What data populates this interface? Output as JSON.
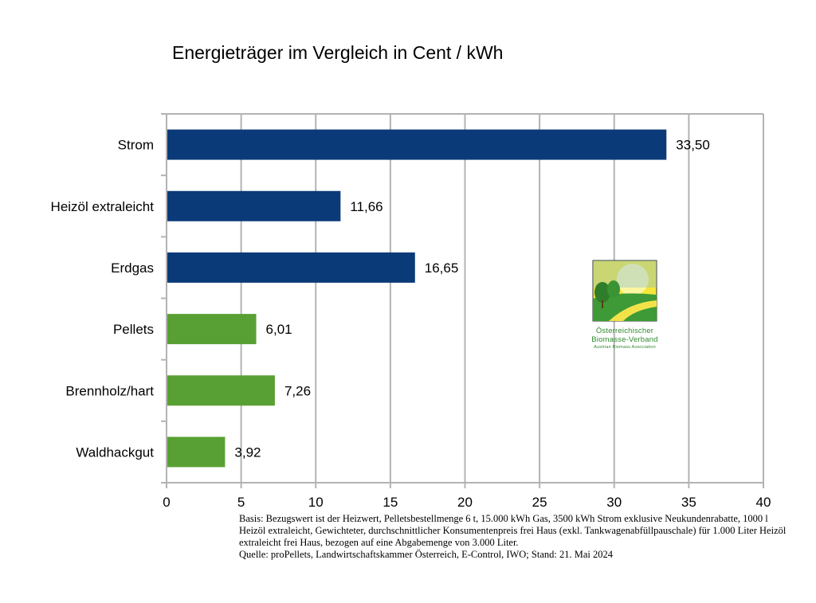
{
  "chart_data": {
    "type": "bar",
    "orientation": "horizontal",
    "title": "Energieträger im Vergleich in Cent / kWh",
    "categories": [
      "Strom",
      "Heizöl extraleicht",
      "Erdgas",
      "Pellets",
      "Brennholz/hart",
      "Waldhackgut"
    ],
    "values": [
      33.5,
      11.66,
      16.65,
      6.01,
      7.26,
      3.92
    ],
    "value_labels": [
      "33,50",
      "11,66",
      "16,65",
      "6,01",
      "7,26",
      "3,92"
    ],
    "bar_colors": [
      "#0b3a78",
      "#0b3a78",
      "#0b3a78",
      "#58a033",
      "#58a033",
      "#58a033"
    ],
    "xlim": [
      0,
      40
    ],
    "xticks": [
      0,
      5,
      10,
      15,
      20,
      25,
      30,
      35,
      40
    ],
    "grid": true
  },
  "colors": {
    "fossil": "#0b3a78",
    "renewable": "#58a033",
    "grid": "#b3b3b3",
    "logo_green": "#2f8a2f"
  },
  "logo": {
    "line1": "Österreichischer",
    "line2": "Biomasse-Verband",
    "line3": "Austrian Biomass Association"
  },
  "note": {
    "basis": "Basis: Bezugswert ist der Heizwert, Pelletsbestellmenge 6 t, 15.000 kWh Gas, 3500 kWh Strom exklusive Neukundenrabatte, 1000 l Heizöl extraleicht, Gewichteter, durchschnittlicher Konsumentenpreis frei Haus (exkl. Tankwagenabfüllpauschale) für 1.000 Liter Heizöl extraleicht frei Haus, bezogen auf eine Abgabemenge von 3.000 Liter.",
    "source": "Quelle: proPellets, Landwirtschaftskammer Österreich, E-Control, IWO; Stand: 21. Mai 2024"
  }
}
